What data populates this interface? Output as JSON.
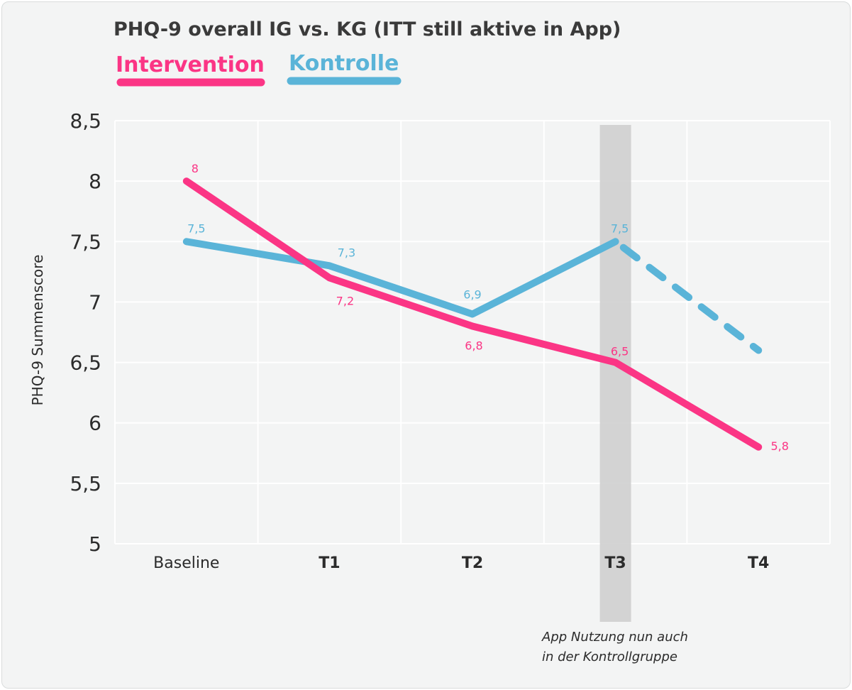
{
  "colors": {
    "intervention": "#fb3585",
    "kontrolle": "#5ab4d8",
    "highlight_band": "#cfcfcf",
    "grid": "#ffffff"
  },
  "chart_data": {
    "type": "line",
    "title": "PHQ-9 overall IG vs. KG (ITT still aktive in App)",
    "ylabel": "PHQ-9 Summenscore",
    "xlabel": "",
    "categories": [
      "Baseline",
      "T1",
      "T2",
      "T3",
      "T4"
    ],
    "ylim": [
      5,
      8.5
    ],
    "yticks": [
      "5",
      "5,5",
      "6",
      "6,5",
      "7",
      "7,5",
      "8",
      "8,5"
    ],
    "ytick_values": [
      5,
      5.5,
      6,
      6.5,
      7,
      7.5,
      8,
      8.5
    ],
    "grid": true,
    "legend_position": "top-left",
    "series": [
      {
        "name": "Intervention",
        "color": "#fb3585",
        "values": [
          8,
          7.2,
          6.8,
          6.5,
          5.8
        ],
        "labels": [
          "8",
          "7,2",
          "6,8",
          "6,5",
          "5,8"
        ]
      },
      {
        "name": "Kontrolle",
        "color": "#5ab4d8",
        "values": [
          7.5,
          7.3,
          6.9,
          7.5,
          6.6
        ],
        "labels": [
          "7,5",
          "7,3",
          "6,9",
          "7,5",
          ""
        ],
        "dashed_from_index": 3
      }
    ],
    "highlight_category": "T3",
    "annotation": [
      "App Nutzung nun auch",
      "in der Kontrollgruppe"
    ]
  }
}
